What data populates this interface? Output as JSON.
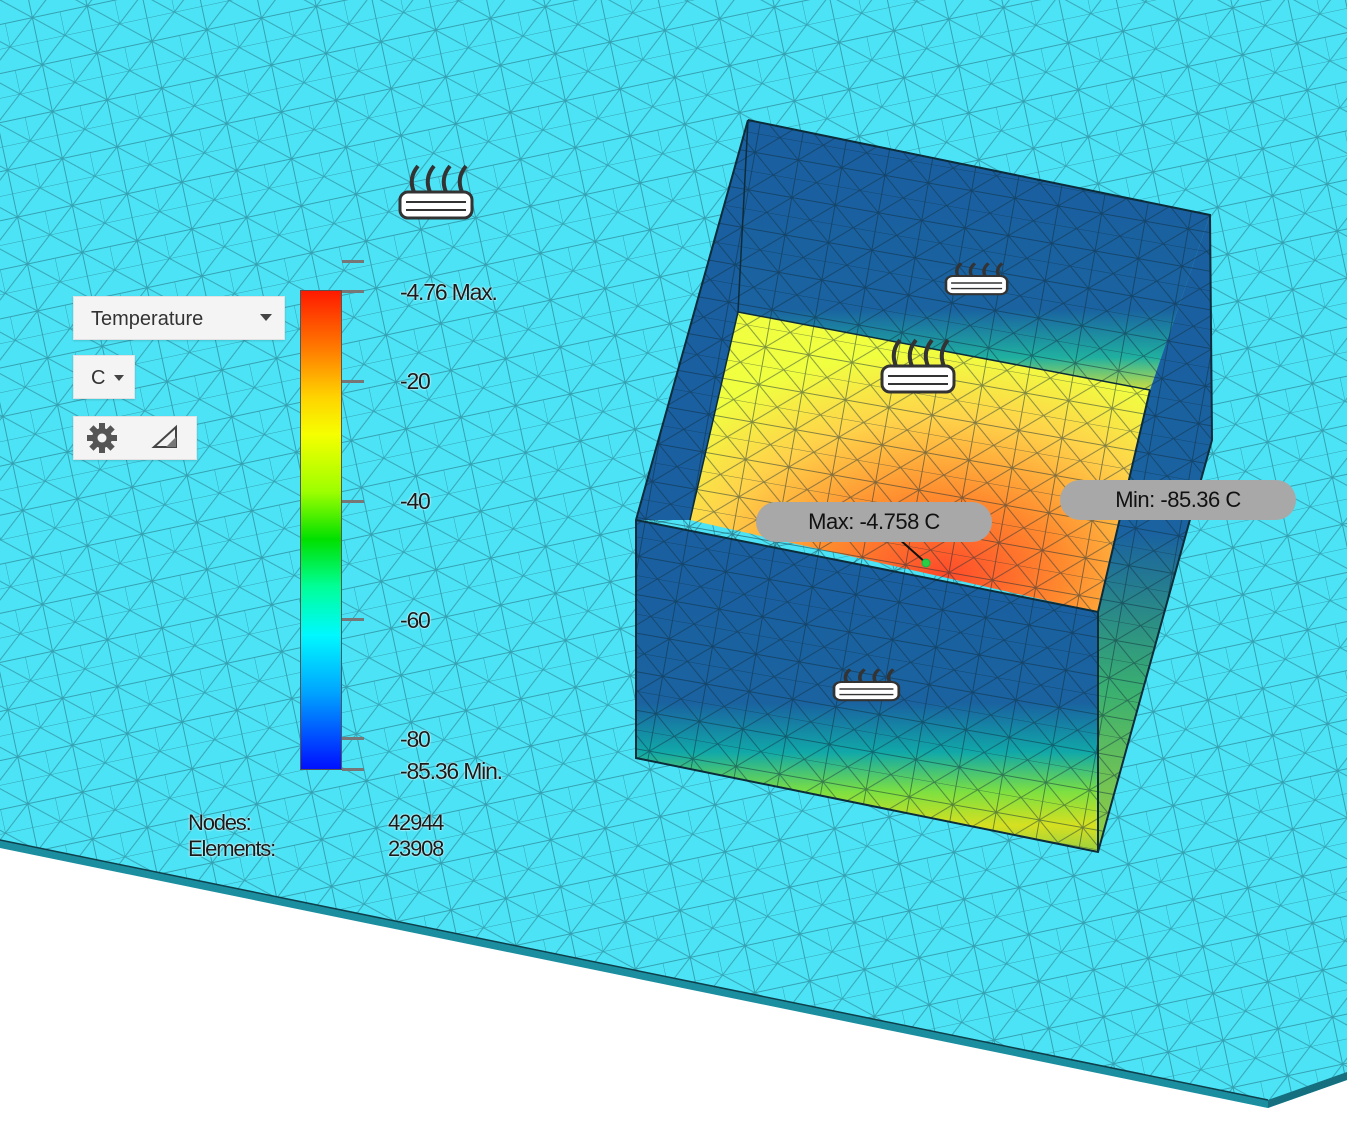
{
  "controls": {
    "result_type": "Temperature",
    "unit": "C",
    "settings_icon": "gear-icon",
    "range_icon": "triangle-icon"
  },
  "legend": {
    "max_label": "-4.76 Max.",
    "min_label": "-85.36 Min.",
    "ticks": [
      "-20",
      "-40",
      "-60",
      "-80"
    ]
  },
  "stats": {
    "nodes_label": "Nodes:",
    "nodes_value": "42944",
    "elements_label": "Elements:",
    "elements_value": "23908"
  },
  "probes": {
    "max": "Max: -4.758 C",
    "min": "Min: -85.36 C"
  },
  "colors": {
    "floor": "#4de3f6",
    "mesh_line": "#1e6d7a",
    "box_cold": "#1a5fa0",
    "box_hot": "#ff5a2a"
  },
  "icons": [
    "convection-load-icon"
  ]
}
